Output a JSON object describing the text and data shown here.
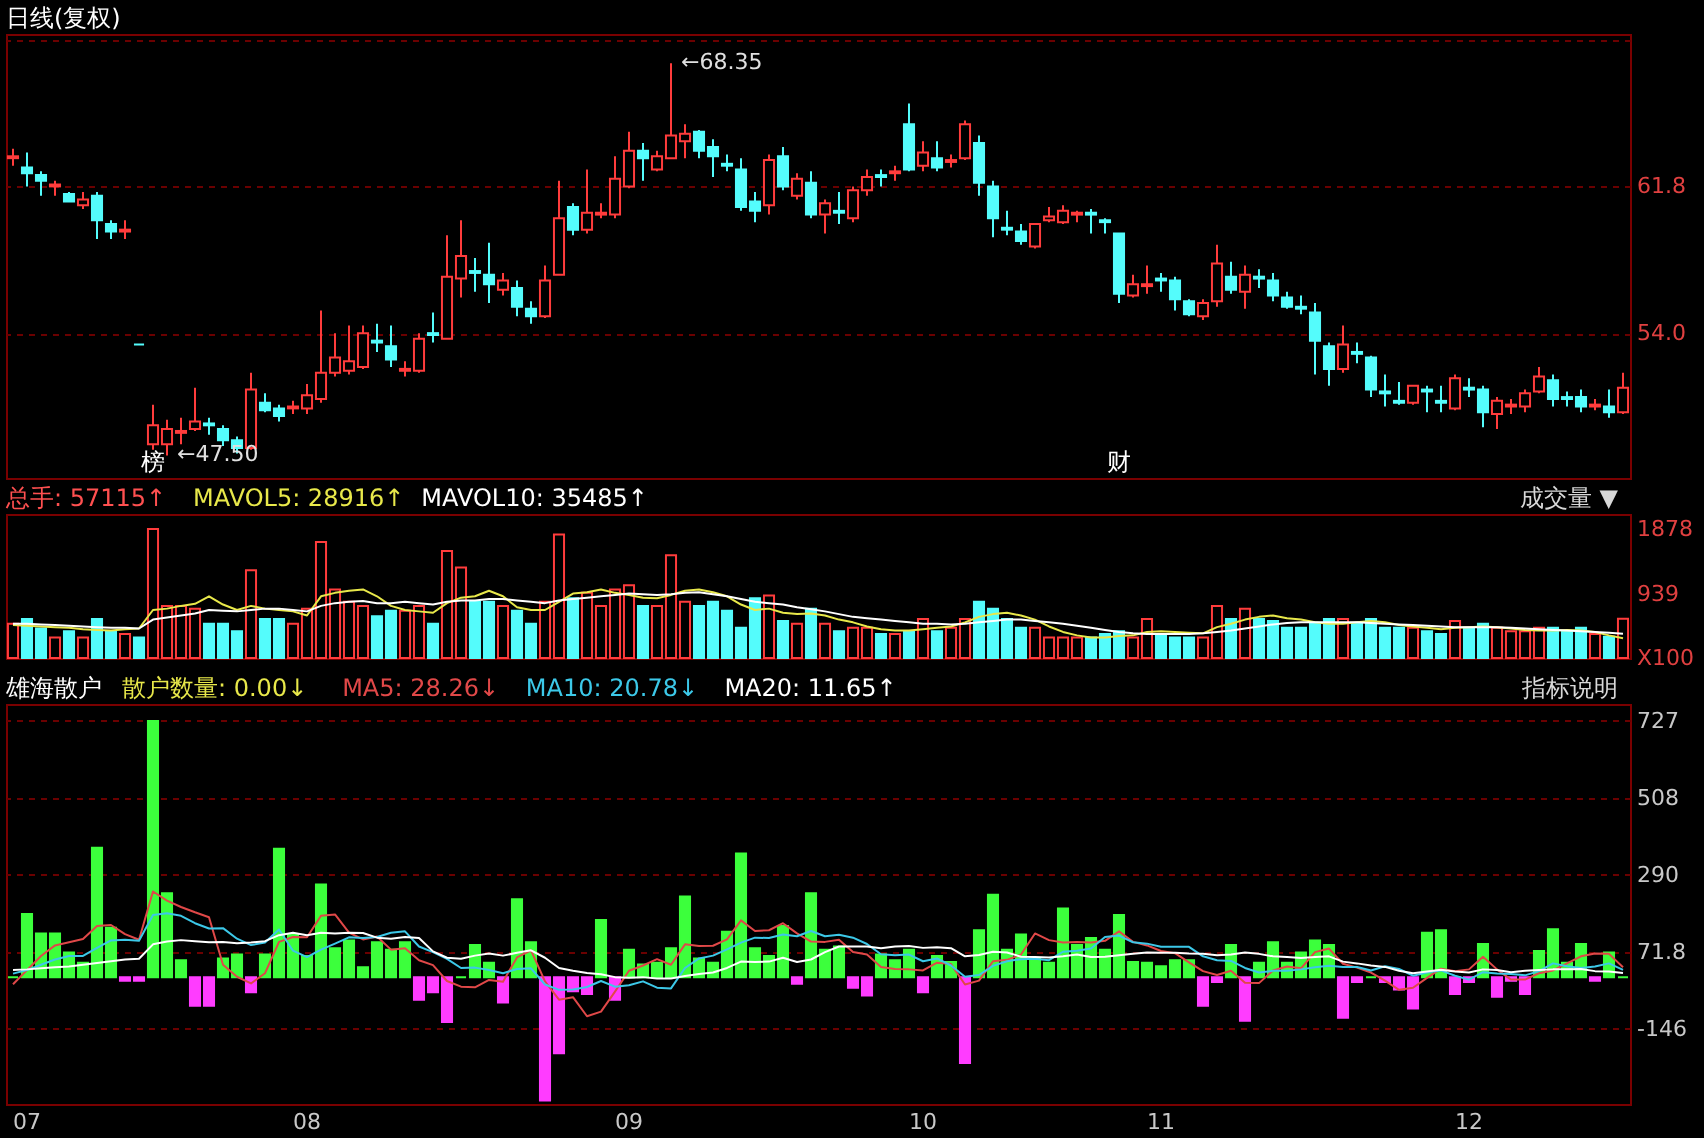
{
  "chart_data": [
    {
      "type": "candlestick",
      "title": "日线(复权)",
      "categories": [
        null,
        "07",
        null,
        null,
        null,
        null,
        null,
        null,
        null,
        null,
        null,
        null,
        null,
        null,
        null,
        null,
        null,
        null,
        null,
        null,
        null,
        "08",
        null,
        null,
        null,
        null,
        null,
        null,
        null,
        null,
        null,
        null,
        null,
        null,
        null,
        null,
        null,
        null,
        null,
        null,
        null,
        null,
        null,
        null,
        "09",
        null,
        null,
        null,
        null,
        null,
        null,
        null,
        null,
        null,
        null,
        null,
        null,
        null,
        null,
        null,
        null,
        null,
        null,
        null,
        null,
        "10",
        null,
        null,
        null,
        null,
        null,
        null,
        null,
        null,
        null,
        null,
        null,
        null,
        null,
        null,
        null,
        null,
        "11",
        null,
        null,
        null,
        null,
        null,
        null,
        null,
        null,
        null,
        null,
        null,
        null,
        null,
        null,
        null,
        null,
        null,
        null,
        null,
        null,
        null,
        "12",
        null,
        null,
        null,
        null,
        null,
        null,
        null,
        null,
        null,
        null,
        null
      ],
      "ohlc": [
        [
          63.3,
          63.8,
          62.9,
          63.4
        ],
        [
          62.8,
          63.6,
          61.8,
          62.5
        ],
        [
          62.4,
          62.6,
          61.3,
          62.1
        ],
        [
          61.8,
          62.1,
          61.3,
          61.9
        ],
        [
          61.4,
          61.5,
          61.0,
          61.0
        ],
        [
          60.8,
          61.5,
          60.6,
          61.1
        ],
        [
          61.3,
          61.5,
          59.0,
          60.0
        ],
        [
          59.8,
          60.0,
          59.0,
          59.4
        ],
        [
          59.4,
          60.0,
          59.0,
          59.5
        ],
        [
          53.4,
          53.4,
          53.4,
          53.4
        ],
        [
          48.1,
          50.2,
          47.8,
          49.1
        ],
        [
          48.1,
          49.4,
          47.5,
          48.9
        ],
        [
          48.7,
          49.5,
          48.1,
          48.8
        ],
        [
          48.9,
          51.1,
          48.8,
          49.3
        ],
        [
          49.2,
          49.5,
          48.6,
          49.1
        ],
        [
          48.9,
          49.1,
          48.0,
          48.3
        ],
        [
          48.3,
          48.5,
          47.6,
          47.9
        ],
        [
          47.9,
          51.9,
          47.8,
          51.0
        ],
        [
          50.3,
          50.8,
          49.8,
          49.9
        ],
        [
          50.0,
          50.2,
          49.3,
          49.6
        ],
        [
          50.0,
          50.4,
          49.7,
          50.1
        ],
        [
          50.0,
          51.3,
          49.7,
          50.7
        ],
        [
          50.5,
          55.2,
          50.3,
          51.9
        ],
        [
          51.9,
          54.0,
          51.7,
          52.7
        ],
        [
          52.0,
          54.4,
          51.8,
          52.5
        ],
        [
          52.2,
          54.4,
          52.1,
          54.0
        ],
        [
          53.6,
          54.5,
          53.0,
          53.5
        ],
        [
          53.3,
          54.4,
          52.2,
          52.6
        ],
        [
          52.0,
          52.5,
          51.7,
          52.1
        ],
        [
          52.0,
          54.0,
          51.9,
          53.7
        ],
        [
          54.0,
          55.1,
          53.5,
          53.9
        ],
        [
          53.7,
          59.2,
          53.7,
          57.0
        ],
        [
          56.9,
          60.0,
          55.9,
          58.1
        ],
        [
          57.3,
          58.0,
          56.2,
          57.2
        ],
        [
          57.1,
          58.8,
          55.6,
          56.6
        ],
        [
          56.3,
          57.2,
          56.0,
          56.8
        ],
        [
          56.4,
          56.8,
          54.9,
          55.4
        ],
        [
          55.3,
          55.7,
          54.5,
          54.9
        ],
        [
          54.9,
          57.6,
          54.8,
          56.8
        ],
        [
          57.1,
          62.1,
          57.1,
          60.1
        ],
        [
          60.7,
          60.9,
          59.2,
          59.5
        ],
        [
          59.5,
          62.7,
          59.3,
          60.4
        ],
        [
          60.3,
          60.9,
          60.1,
          60.4
        ],
        [
          60.3,
          63.4,
          60.1,
          62.2
        ],
        [
          61.8,
          64.7,
          61.7,
          63.7
        ],
        [
          63.7,
          64.1,
          62.1,
          63.3
        ],
        [
          62.7,
          63.7,
          62.6,
          63.4
        ],
        [
          63.3,
          68.35,
          63.3,
          64.5
        ],
        [
          64.2,
          65.1,
          63.3,
          64.6
        ],
        [
          64.7,
          64.8,
          63.3,
          63.7
        ],
        [
          63.9,
          64.3,
          62.3,
          63.4
        ],
        [
          63.0,
          63.5,
          62.6,
          62.9
        ],
        [
          62.7,
          63.3,
          60.5,
          60.7
        ],
        [
          61.0,
          61.5,
          59.9,
          60.5
        ],
        [
          60.8,
          63.5,
          60.3,
          63.2
        ],
        [
          63.4,
          63.9,
          61.6,
          61.8
        ],
        [
          61.3,
          62.5,
          61.1,
          62.2
        ],
        [
          62.0,
          62.6,
          60.1,
          60.3
        ],
        [
          60.3,
          61.1,
          59.3,
          60.9
        ],
        [
          60.5,
          61.5,
          59.8,
          60.4
        ],
        [
          60.1,
          61.8,
          59.9,
          61.6
        ],
        [
          61.6,
          62.7,
          61.3,
          62.3
        ],
        [
          62.4,
          62.7,
          61.8,
          62.3
        ],
        [
          62.5,
          62.9,
          62.1,
          62.6
        ],
        [
          65.1,
          66.2,
          62.6,
          62.7
        ],
        [
          62.9,
          64.2,
          62.6,
          63.6
        ],
        [
          63.3,
          64.2,
          62.6,
          62.8
        ],
        [
          63.1,
          63.5,
          62.8,
          63.2
        ],
        [
          63.3,
          65.3,
          63.2,
          65.1
        ],
        [
          64.1,
          64.5,
          61.3,
          62.0
        ],
        [
          61.8,
          62.1,
          59.1,
          60.1
        ],
        [
          59.6,
          60.5,
          59.2,
          59.5
        ],
        [
          59.4,
          59.8,
          58.7,
          58.9
        ],
        [
          58.6,
          59.8,
          58.5,
          59.8
        ],
        [
          60.0,
          60.7,
          59.9,
          60.2
        ],
        [
          59.9,
          60.8,
          59.8,
          60.5
        ],
        [
          60.3,
          60.5,
          59.9,
          60.4
        ],
        [
          60.4,
          60.6,
          59.3,
          60.3
        ],
        [
          60.0,
          60.1,
          59.3,
          59.9
        ],
        [
          59.3,
          59.3,
          55.6,
          56.1
        ],
        [
          56.0,
          57.1,
          55.9,
          56.6
        ],
        [
          56.5,
          57.6,
          56.1,
          56.6
        ],
        [
          56.9,
          57.2,
          56.2,
          56.8
        ],
        [
          56.8,
          57.0,
          55.2,
          55.8
        ],
        [
          55.7,
          55.8,
          54.9,
          55.0
        ],
        [
          54.9,
          55.8,
          54.7,
          55.6
        ],
        [
          55.7,
          58.7,
          55.4,
          57.7
        ],
        [
          57.0,
          57.8,
          56.1,
          56.3
        ],
        [
          56.2,
          57.6,
          55.3,
          57.1
        ],
        [
          57.0,
          57.4,
          56.4,
          56.9
        ],
        [
          56.8,
          57.2,
          55.7,
          56.0
        ],
        [
          55.9,
          56.2,
          55.3,
          55.4
        ],
        [
          55.4,
          56.0,
          55.0,
          55.3
        ],
        [
          55.1,
          55.6,
          51.8,
          53.6
        ],
        [
          53.3,
          53.5,
          51.2,
          52.1
        ],
        [
          52.1,
          54.4,
          51.9,
          53.4
        ],
        [
          53.0,
          53.5,
          52.4,
          52.9
        ],
        [
          52.7,
          52.8,
          50.6,
          51.0
        ],
        [
          50.9,
          51.8,
          50.1,
          50.8
        ],
        [
          50.4,
          51.4,
          50.2,
          50.3
        ],
        [
          50.3,
          51.2,
          50.2,
          51.2
        ],
        [
          51.0,
          51.2,
          49.8,
          50.9
        ],
        [
          50.4,
          51.2,
          49.8,
          50.3
        ],
        [
          50.0,
          51.8,
          49.9,
          51.6
        ],
        [
          51.1,
          51.6,
          50.6,
          51.0
        ],
        [
          51.0,
          51.2,
          49.0,
          49.8
        ],
        [
          49.7,
          50.6,
          48.9,
          50.4
        ],
        [
          50.1,
          50.5,
          49.7,
          50.2
        ],
        [
          50.1,
          51.0,
          49.8,
          50.8
        ],
        [
          50.9,
          52.2,
          50.8,
          51.7
        ],
        [
          51.5,
          51.8,
          50.1,
          50.5
        ],
        [
          50.6,
          50.9,
          50.1,
          50.5
        ],
        [
          50.6,
          51.0,
          49.8,
          50.1
        ],
        [
          50.1,
          50.5,
          49.9,
          50.2
        ],
        [
          50.1,
          51.0,
          49.5,
          49.8
        ],
        [
          49.8,
          51.9,
          49.7,
          51.1
        ]
      ],
      "colors": [
        "#ff3c3c",
        "#54fcfc",
        "#54fcfc",
        "#ff3c3c",
        "#54fcfc",
        "#ff3c3c",
        "#54fcfc",
        "#54fcfc",
        "#ff3c3c",
        "#54fcfc",
        "#ff3c3c",
        "#ff3c3c",
        "#ff3c3c",
        "#ff3c3c",
        "#54fcfc",
        "#54fcfc",
        "#54fcfc",
        "#ff3c3c",
        "#54fcfc",
        "#54fcfc",
        "#ff3c3c",
        "#ff3c3c",
        "#ff3c3c",
        "#ff3c3c",
        "#ff3c3c",
        "#ff3c3c",
        "#54fcfc",
        "#54fcfc",
        "#ff3c3c",
        "#ff3c3c",
        "#54fcfc",
        "#ff3c3c",
        "#ff3c3c",
        "#54fcfc",
        "#54fcfc",
        "#ff3c3c",
        "#54fcfc",
        "#54fcfc",
        "#ff3c3c",
        "#ff3c3c",
        "#54fcfc",
        "#ff3c3c",
        "#ff3c3c",
        "#ff3c3c",
        "#ff3c3c",
        "#54fcfc",
        "#ff3c3c",
        "#ff3c3c",
        "#ff3c3c",
        "#54fcfc",
        "#54fcfc",
        "#54fcfc",
        "#54fcfc",
        "#54fcfc",
        "#ff3c3c",
        "#54fcfc",
        "#ff3c3c",
        "#54fcfc",
        "#ff3c3c",
        "#54fcfc",
        "#ff3c3c",
        "#ff3c3c",
        "#54fcfc",
        "#ff3c3c",
        "#54fcfc",
        "#ff3c3c",
        "#54fcfc",
        "#ff3c3c",
        "#ff3c3c",
        "#54fcfc",
        "#54fcfc",
        "#54fcfc",
        "#54fcfc",
        "#ff3c3c",
        "#ff3c3c",
        "#ff3c3c",
        "#ff3c3c",
        "#54fcfc",
        "#54fcfc",
        "#54fcfc",
        "#ff3c3c",
        "#ff3c3c",
        "#54fcfc",
        "#54fcfc",
        "#54fcfc",
        "#ff3c3c",
        "#ff3c3c",
        "#54fcfc",
        "#ff3c3c",
        "#54fcfc",
        "#54fcfc",
        "#54fcfc",
        "#54fcfc",
        "#54fcfc",
        "#54fcfc",
        "#ff3c3c",
        "#54fcfc",
        "#54fcfc",
        "#54fcfc",
        "#54fcfc",
        "#ff3c3c",
        "#54fcfc",
        "#54fcfc",
        "#ff3c3c",
        "#54fcfc",
        "#54fcfc",
        "#ff3c3c",
        "#ff3c3c",
        "#ff3c3c",
        "#ff3c3c",
        "#54fcfc",
        "#54fcfc",
        "#54fcfc",
        "#ff3c3c",
        "#54fcfc",
        "#ff3c3c"
      ],
      "ylim": [
        46.3,
        69.9
      ],
      "yticks": [
        {
          "value": 54.0,
          "label": "54.0"
        },
        61.8,
        {
          "value": 69.6,
          "label": null
        }
      ],
      "grid": "y",
      "tick_labels": "y",
      "annotations": [
        "←68.35",
        "←47.50",
        "榜",
        "财"
      ]
    },
    {
      "type": "bar",
      "categories": [
        null,
        "07",
        null,
        null,
        null,
        null,
        null,
        null,
        null,
        null,
        null,
        null,
        null,
        null,
        null,
        null,
        null,
        null,
        null,
        null,
        null,
        "08",
        null,
        null,
        null,
        null,
        null,
        null,
        null,
        null,
        null,
        null,
        null,
        null,
        null,
        null,
        null,
        null,
        null,
        null,
        null,
        null,
        null,
        null,
        "09",
        null,
        null,
        null,
        null,
        null,
        null,
        null,
        null,
        null,
        null,
        null,
        null,
        null,
        null,
        null,
        null,
        null,
        null,
        null,
        null,
        "10",
        null,
        null,
        null,
        null,
        null,
        null,
        null,
        null,
        null,
        null,
        null,
        null,
        null,
        null,
        null,
        null,
        "11",
        null,
        null,
        null,
        null,
        null,
        null,
        null,
        null,
        null,
        null,
        null,
        null,
        null,
        null,
        null,
        null,
        null,
        null,
        null,
        null,
        null,
        "12",
        null,
        null,
        null,
        null,
        null,
        null,
        null,
        null,
        null,
        null,
        null
      ],
      "series": [
        {
          "type": "bar",
          "values": [
            500,
            570,
            430,
            300,
            390,
            300,
            570,
            390,
            350,
            300,
            1880,
            760,
            760,
            720,
            500,
            500,
            390,
            1280,
            570,
            570,
            500,
            720,
            1690,
            1000,
            820,
            760,
            610,
            690,
            690,
            760,
            500,
            1560,
            1320,
            820,
            820,
            760,
            690,
            500,
            820,
            1800,
            870,
            950,
            760,
            1000,
            1060,
            760,
            760,
            1500,
            820,
            760,
            820,
            690,
            440,
            870,
            910,
            540,
            500,
            720,
            500,
            390,
            440,
            440,
            350,
            350,
            390,
            570,
            390,
            440,
            570,
            820,
            720,
            570,
            440,
            440,
            300,
            300,
            300,
            300,
            350,
            390,
            300,
            570,
            350,
            300,
            300,
            300,
            760,
            570,
            720,
            570,
            540,
            440,
            440,
            500,
            570,
            570,
            500,
            570,
            440,
            440,
            440,
            390,
            350,
            540,
            440,
            500,
            440,
            390,
            390,
            440,
            440,
            390,
            440,
            350,
            310,
            571.15
          ],
          "colors": [
            "#ff3c3c",
            "#54fcfc",
            "#54fcfc",
            "#ff3c3c",
            "#54fcfc",
            "#ff3c3c",
            "#54fcfc",
            "#54fcfc",
            "#ff3c3c",
            "#54fcfc",
            "#ff3c3c",
            "#ff3c3c",
            "#ff3c3c",
            "#ff3c3c",
            "#54fcfc",
            "#54fcfc",
            "#54fcfc",
            "#ff3c3c",
            "#54fcfc",
            "#54fcfc",
            "#ff3c3c",
            "#ff3c3c",
            "#ff3c3c",
            "#ff3c3c",
            "#ff3c3c",
            "#ff3c3c",
            "#54fcfc",
            "#54fcfc",
            "#ff3c3c",
            "#ff3c3c",
            "#54fcfc",
            "#ff3c3c",
            "#ff3c3c",
            "#54fcfc",
            "#54fcfc",
            "#ff3c3c",
            "#54fcfc",
            "#54fcfc",
            "#ff3c3c",
            "#ff3c3c",
            "#54fcfc",
            "#ff3c3c",
            "#ff3c3c",
            "#ff3c3c",
            "#ff3c3c",
            "#54fcfc",
            "#ff3c3c",
            "#ff3c3c",
            "#ff3c3c",
            "#54fcfc",
            "#54fcfc",
            "#54fcfc",
            "#54fcfc",
            "#54fcfc",
            "#ff3c3c",
            "#54fcfc",
            "#ff3c3c",
            "#54fcfc",
            "#ff3c3c",
            "#54fcfc",
            "#ff3c3c",
            "#ff3c3c",
            "#54fcfc",
            "#ff3c3c",
            "#54fcfc",
            "#ff3c3c",
            "#54fcfc",
            "#ff3c3c",
            "#ff3c3c",
            "#54fcfc",
            "#54fcfc",
            "#54fcfc",
            "#54fcfc",
            "#ff3c3c",
            "#ff3c3c",
            "#ff3c3c",
            "#ff3c3c",
            "#54fcfc",
            "#54fcfc",
            "#54fcfc",
            "#ff3c3c",
            "#ff3c3c",
            "#54fcfc",
            "#54fcfc",
            "#54fcfc",
            "#ff3c3c",
            "#ff3c3c",
            "#54fcfc",
            "#ff3c3c",
            "#54fcfc",
            "#54fcfc",
            "#54fcfc",
            "#54fcfc",
            "#54fcfc",
            "#54fcfc",
            "#ff3c3c",
            "#54fcfc",
            "#54fcfc",
            "#54fcfc",
            "#54fcfc",
            "#ff3c3c",
            "#54fcfc",
            "#54fcfc",
            "#ff3c3c",
            "#54fcfc",
            "#54fcfc",
            "#ff3c3c",
            "#ff3c3c",
            "#ff3c3c",
            "#ff3c3c",
            "#54fcfc",
            "#54fcfc",
            "#54fcfc",
            "#ff3c3c",
            "#54fcfc",
            "#ff3c3c"
          ]
        },
        {
          "name": "MAVOL5: 28916↑",
          "type": "line",
          "color": "#e8e84a",
          "values": [
            480,
            470,
            460,
            450,
            440,
            420,
            410,
            400,
            420,
            430,
            700,
            720,
            760,
            790,
            900,
            780,
            700,
            760,
            720,
            700,
            680,
            620,
            900,
            950,
            980,
            1000,
            900,
            760,
            700,
            680,
            660,
            800,
            880,
            900,
            980,
            900,
            740,
            700,
            700,
            820,
            940,
            960,
            1000,
            950,
            920,
            880,
            870,
            920,
            980,
            1000,
            960,
            900,
            780,
            700,
            720,
            660,
            640,
            650,
            620,
            560,
            520,
            460,
            420,
            400,
            400,
            420,
            440,
            460,
            520,
            600,
            640,
            660,
            620,
            560,
            460,
            380,
            330,
            300,
            300,
            320,
            330,
            380,
            390,
            380,
            370,
            360,
            450,
            500,
            560,
            600,
            620,
            580,
            560,
            520,
            500,
            500,
            520,
            540,
            520,
            480,
            460,
            440,
            420,
            440,
            450,
            460,
            450,
            430,
            410,
            400,
            400,
            410,
            400,
            380,
            330,
            289.16
          ]
        },
        {
          "name": "MAVOL10: 35485↑",
          "type": "line",
          "color": "#ffffff",
          "values": [
            500,
            500,
            490,
            480,
            470,
            460,
            450,
            440,
            440,
            430,
            560,
            590,
            620,
            650,
            700,
            690,
            680,
            700,
            720,
            720,
            700,
            680,
            760,
            800,
            820,
            830,
            800,
            800,
            820,
            800,
            780,
            820,
            840,
            840,
            860,
            860,
            840,
            820,
            800,
            840,
            860,
            880,
            900,
            920,
            940,
            930,
            920,
            930,
            950,
            960,
            930,
            900,
            860,
            820,
            800,
            780,
            740,
            710,
            680,
            640,
            600,
            580,
            560,
            540,
            520,
            500,
            500,
            490,
            500,
            520,
            540,
            560,
            560,
            540,
            520,
            500,
            470,
            440,
            410,
            380,
            360,
            350,
            350,
            350,
            350,
            360,
            380,
            400,
            430,
            460,
            490,
            510,
            520,
            520,
            520,
            520,
            520,
            510,
            500,
            490,
            480,
            470,
            460,
            450,
            450,
            450,
            450,
            440,
            430,
            420,
            410,
            400,
            390,
            380,
            370,
            354.85
          ]
        }
      ],
      "annotations": [
        "总手: 57115↑",
        "成交量 ▼"
      ],
      "ylim": [
        0,
        2100
      ],
      "yticks": [
        {
          "value": 0,
          "label": "X100"
        },
        939,
        1878
      ],
      "tick_labels": "y"
    },
    {
      "type": "bar",
      "title": "雄海散户",
      "categories": [
        null,
        "07",
        null,
        null,
        null,
        null,
        null,
        null,
        null,
        null,
        null,
        null,
        null,
        null,
        null,
        null,
        null,
        null,
        null,
        null,
        null,
        "08",
        null,
        null,
        null,
        null,
        null,
        null,
        null,
        null,
        null,
        null,
        null,
        null,
        null,
        null,
        null,
        null,
        null,
        null,
        null,
        null,
        null,
        null,
        "09",
        null,
        null,
        null,
        null,
        null,
        null,
        null,
        null,
        null,
        null,
        null,
        null,
        null,
        null,
        null,
        null,
        null,
        null,
        null,
        null,
        "10",
        null,
        null,
        null,
        null,
        null,
        null,
        null,
        null,
        null,
        null,
        null,
        null,
        null,
        null,
        null,
        null,
        "11",
        null,
        null,
        null,
        null,
        null,
        null,
        null,
        null,
        null,
        null,
        null,
        null,
        null,
        null,
        null,
        null,
        null,
        null,
        null,
        null,
        null,
        "12",
        null,
        null,
        null,
        null,
        null,
        null,
        null,
        null,
        null,
        null,
        null
      ],
      "series": [
        {
          "type": "bar",
          "values": [
            0,
            179,
            124,
            124,
            70,
            41,
            367,
            140,
            -10,
            -10,
            727,
            238,
            48,
            -81,
            -81,
            53,
            64,
            -43,
            64,
            364,
            121,
            60,
            263,
            82,
            104,
            28,
            99,
            78,
            99,
            -64,
            -43,
            -127,
            0,
            91,
            41,
            -72,
            221,
            99,
            -350,
            -216,
            -40,
            -48,
            162,
            -64,
            78,
            36,
            41,
            82,
            229,
            53,
            41,
            129,
            351,
            82,
            60,
            145,
            -19,
            238,
            78,
            87,
            -30,
            -52,
            64,
            48,
            78,
            -43,
            60,
            43,
            -244,
            133,
            234,
            78,
            121,
            53,
            41,
            195,
            91,
            111,
            78,
            176,
            43,
            41,
            31,
            48,
            48,
            -81,
            -14,
            91,
            -124,
            41,
            99,
            41,
            70,
            104,
            91,
            -115,
            -14,
            0,
            -14,
            -35,
            -89,
            126,
            133,
            -48,
            -14,
            94,
            -56,
            -10,
            -48,
            74,
            136,
            41,
            94,
            -10,
            70,
            0
          ],
          "colors": [
            "#3cff3c",
            "#3cff3c",
            "#3cff3c",
            "#3cff3c",
            "#3cff3c",
            "#3cff3c",
            "#3cff3c",
            "#3cff3c",
            "#ff3cff",
            "#ff3cff",
            "#3cff3c",
            "#3cff3c",
            "#3cff3c",
            "#ff3cff",
            "#ff3cff",
            "#3cff3c",
            "#3cff3c",
            "#ff3cff",
            "#3cff3c",
            "#3cff3c",
            "#3cff3c",
            "#3cff3c",
            "#3cff3c",
            "#3cff3c",
            "#3cff3c",
            "#3cff3c",
            "#3cff3c",
            "#3cff3c",
            "#3cff3c",
            "#ff3cff",
            "#ff3cff",
            "#ff3cff",
            "#3cff3c",
            "#3cff3c",
            "#3cff3c",
            "#ff3cff",
            "#3cff3c",
            "#3cff3c",
            "#ff3cff",
            "#ff3cff",
            "#ff3cff",
            "#ff3cff",
            "#3cff3c",
            "#ff3cff",
            "#3cff3c",
            "#3cff3c",
            "#3cff3c",
            "#3cff3c",
            "#3cff3c",
            "#3cff3c",
            "#3cff3c",
            "#3cff3c",
            "#3cff3c",
            "#3cff3c",
            "#3cff3c",
            "#3cff3c",
            "#ff3cff",
            "#3cff3c",
            "#3cff3c",
            "#3cff3c",
            "#ff3cff",
            "#ff3cff",
            "#3cff3c",
            "#3cff3c",
            "#3cff3c",
            "#ff3cff",
            "#3cff3c",
            "#3cff3c",
            "#ff3cff",
            "#3cff3c",
            "#3cff3c",
            "#3cff3c",
            "#3cff3c",
            "#3cff3c",
            "#3cff3c",
            "#3cff3c",
            "#3cff3c",
            "#3cff3c",
            "#3cff3c",
            "#3cff3c",
            "#3cff3c",
            "#3cff3c",
            "#3cff3c",
            "#3cff3c",
            "#3cff3c",
            "#ff3cff",
            "#ff3cff",
            "#3cff3c",
            "#ff3cff",
            "#3cff3c",
            "#3cff3c",
            "#3cff3c",
            "#3cff3c",
            "#3cff3c",
            "#3cff3c",
            "#ff3cff",
            "#ff3cff",
            "#3cff3c",
            "#ff3cff",
            "#ff3cff",
            "#ff3cff",
            "#3cff3c",
            "#3cff3c",
            "#ff3cff",
            "#ff3cff",
            "#3cff3c",
            "#ff3cff",
            "#ff3cff",
            "#ff3cff",
            "#3cff3c",
            "#3cff3c",
            "#3cff3c",
            "#3cff3c",
            "#ff3cff",
            "#3cff3c",
            "#3cff3c"
          ]
        },
        {
          "name": "MA5: 28.26↓",
          "type": "line",
          "color": "#e04848",
          "values": [
            -20,
            20,
            60,
            90,
            99,
            108,
            145,
            148,
            122,
            106,
            243,
            217,
            199,
            184,
            170,
            35,
            1,
            -18,
            11,
            100,
            114,
            113,
            174,
            178,
            126,
            107,
            115,
            78,
            82,
            48,
            34,
            -11,
            -27,
            -29,
            -8,
            -13,
            56,
            76,
            -12,
            -64,
            -57,
            -111,
            -98,
            -41,
            18,
            33,
            51,
            35,
            93,
            88,
            89,
            107,
            161,
            131,
            133,
            153,
            124,
            101,
            100,
            106,
            71,
            64,
            29,
            23,
            22,
            19,
            41,
            37,
            -21,
            -10,
            45,
            49,
            64,
            124,
            105,
            98,
            100,
            98,
            103,
            130,
            100,
            90,
            74,
            68,
            42,
            17,
            6,
            18,
            -16,
            -17,
            19,
            30,
            25,
            71,
            81,
            38,
            27,
            13,
            -10,
            -36,
            -30,
            -2,
            24,
            17,
            22,
            58,
            22,
            -7,
            -7,
            11,
            19,
            39,
            59,
            67,
            66,
            28.26
          ]
        },
        {
          "name": "MA10: 20.78↓",
          "type": "line",
          "color": "#3cc8e8",
          "values": [
            10,
            20,
            35,
            50,
            60,
            60,
            83,
            104,
            106,
            103,
            176,
            181,
            174,
            153,
            138,
            139,
            109,
            91,
            98,
            135,
            75,
            57,
            78,
            95,
            113,
            111,
            114,
            126,
            130,
            87,
            71,
            52,
            26,
            27,
            20,
            11,
            23,
            25,
            -21,
            -36,
            -35,
            -28,
            -11,
            -27,
            -23,
            -12,
            -30,
            -32,
            26,
            53,
            61,
            79,
            98,
            112,
            111,
            121,
            116,
            131,
            116,
            120,
            112,
            94,
            65,
            62,
            64,
            45,
            53,
            33,
            1,
            6,
            32,
            45,
            51,
            52,
            48,
            72,
            75,
            81,
            114,
            118,
            99,
            95,
            86,
            86,
            86,
            59,
            48,
            46,
            26,
            13,
            18,
            18,
            22,
            28,
            32,
            29,
            29,
            19,
            31,
            23,
            4,
            13,
            19,
            4,
            -7,
            14,
            10,
            9,
            5,
            17,
            39,
            31,
            26,
            30,
            39,
            20.78
          ]
        },
        {
          "name": "MA20: 11.65↑",
          "type": "line",
          "color": "#ffffff",
          "values": [
            20,
            22,
            25,
            28,
            30,
            35,
            40,
            45,
            50,
            52,
            93,
            101,
            105,
            102,
            99,
            100,
            96,
            98,
            102,
            119,
            126,
            119,
            126,
            124,
            126,
            125,
            112,
            109,
            114,
            111,
            73,
            55,
            52,
            61,
            67,
            61,
            69,
            76,
            55,
            26,
            18,
            12,
            8,
            0,
            -2,
            0,
            -4,
            -4,
            3,
            9,
            13,
            26,
            44,
            43,
            44,
            55,
            43,
            50,
            71,
            87,
            87,
            87,
            82,
            87,
            88,
            83,
            85,
            82,
            59,
            63,
            72,
            70,
            58,
            57,
            56,
            59,
            64,
            57,
            58,
            62,
            66,
            70,
            69,
            69,
            67,
            66,
            62,
            64,
            70,
            66,
            59,
            57,
            54,
            57,
            59,
            44,
            39,
            33,
            29,
            18,
            11,
            16,
            21,
            16,
            13,
            22,
            20,
            14,
            18,
            20,
            22,
            22,
            23,
            17,
            16,
            11.65
          ]
        }
      ],
      "annotations": [
        "散户数量: 0.00↓",
        "指标说明"
      ],
      "ylim": [
        -360,
        775
      ],
      "yticks": [
        -146,
        71.8,
        290,
        508,
        727
      ],
      "grid": "y"
    }
  ]
}
